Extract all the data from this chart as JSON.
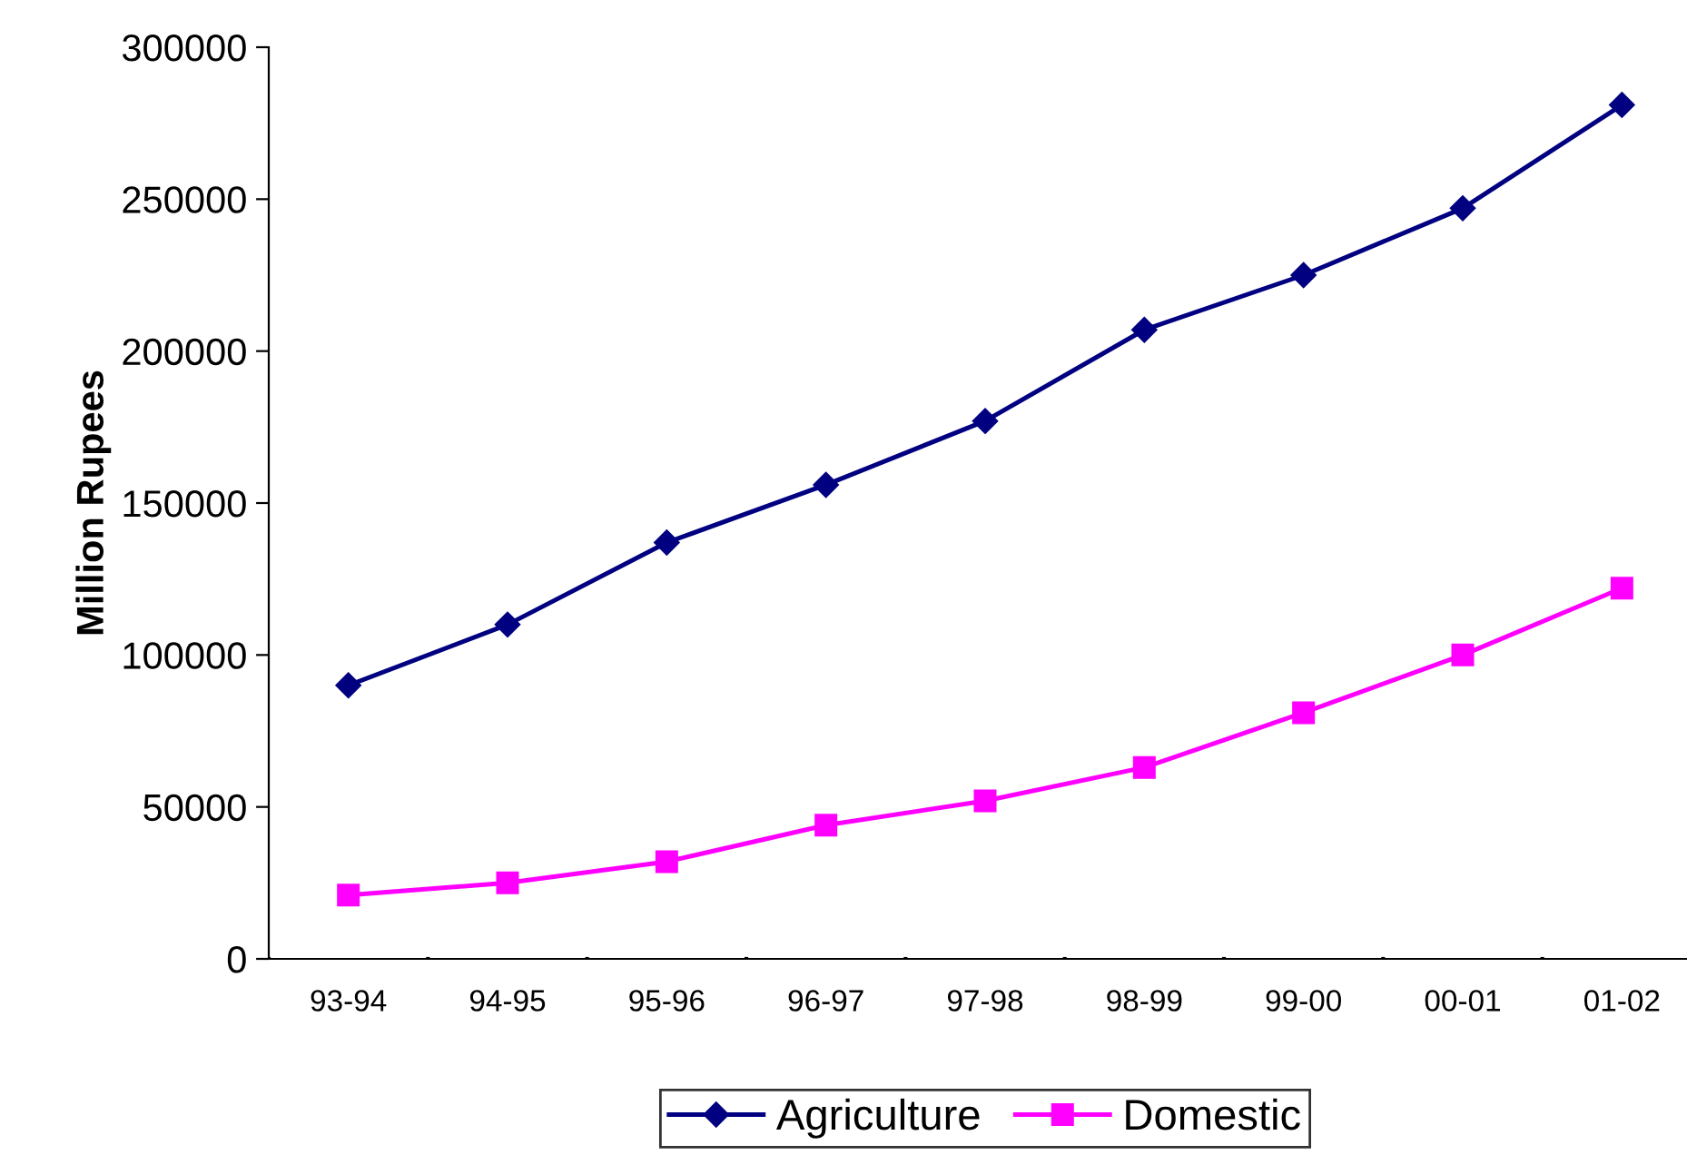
{
  "chart_data": {
    "type": "line",
    "ylabel": "Million Rupees",
    "categories": [
      "93-94",
      "94-95",
      "95-96",
      "96-97",
      "97-98",
      "98-99",
      "99-00",
      "00-01",
      "01-02"
    ],
    "series": [
      {
        "name": "Agriculture",
        "color": "#000080",
        "marker": "diamond",
        "values": [
          90000,
          110000,
          137000,
          156000,
          177000,
          207000,
          225000,
          247000,
          281000
        ]
      },
      {
        "name": "Domestic",
        "color": "#ff00ff",
        "marker": "square",
        "values": [
          21000,
          25000,
          32000,
          44000,
          52000,
          63000,
          81000,
          100000,
          122000
        ]
      }
    ],
    "ylim": [
      0,
      300000
    ],
    "yticks": [
      0,
      50000,
      100000,
      150000,
      200000,
      250000,
      300000
    ],
    "grid": false,
    "legend": "bottom",
    "line_style": "solid"
  }
}
